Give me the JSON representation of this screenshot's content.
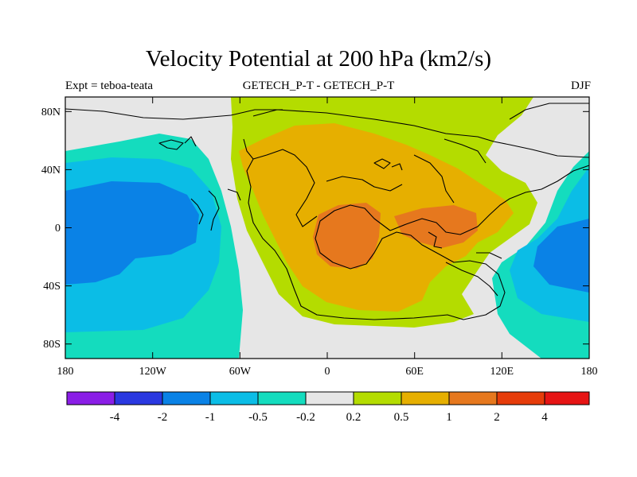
{
  "title": "Velocity Potential at 200 hPa (km2/s)",
  "subtitle_left": "Expt = teboa-teata",
  "subtitle_center": "GETECH_P-T - GETECH_P-T",
  "subtitle_right": "DJF",
  "x_ticks": [
    "180",
    "120W",
    "60W",
    "0",
    "60E",
    "120E",
    "180"
  ],
  "y_ticks": [
    "80N",
    "40N",
    "0",
    "40S",
    "80S"
  ],
  "colorbar": {
    "colors": [
      "#8a1ee6",
      "#2a38e0",
      "#0a82e6",
      "#0bbde6",
      "#14dcbe",
      "#e6e6e6",
      "#b4dc00",
      "#e6af00",
      "#e6781e",
      "#e63c0a",
      "#e61414"
    ],
    "labels": [
      "-4",
      "-2",
      "-1",
      "-0.5",
      "-0.2",
      "0.2",
      "0.5",
      "1",
      "2",
      "4"
    ]
  }
}
